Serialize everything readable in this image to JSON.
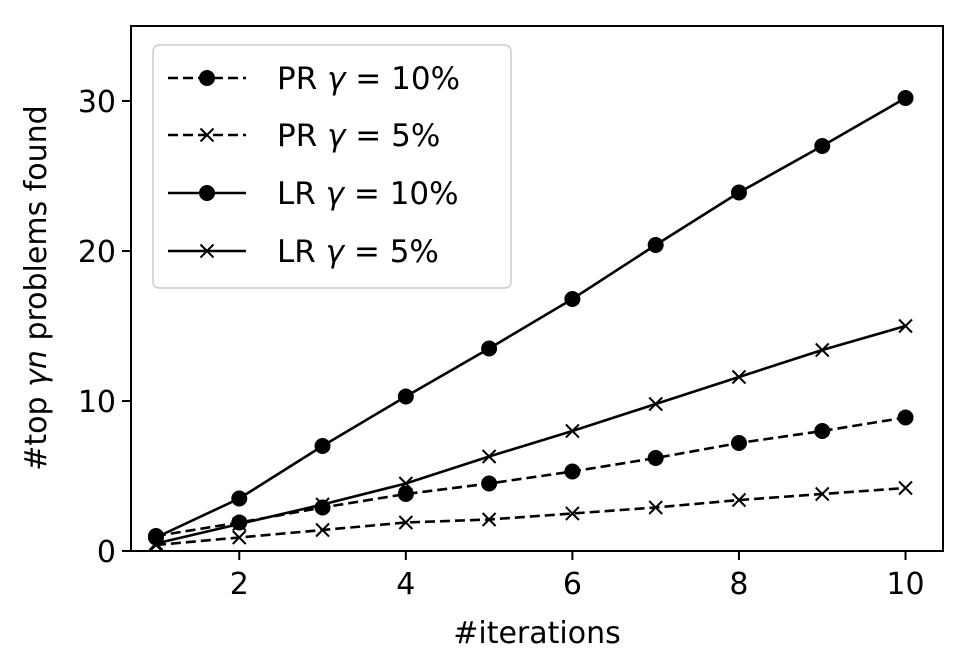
{
  "chart_data": {
    "type": "line",
    "title": "",
    "xlabel": "#iterations",
    "ylabel": {
      "prefix": "#top ",
      "italic": "γn",
      "suffix": " problems found"
    },
    "xlim": [
      0.7,
      10.45
    ],
    "ylim": [
      0,
      35
    ],
    "xticks": [
      2,
      4,
      6,
      8,
      10
    ],
    "yticks": [
      0,
      10,
      20,
      30
    ],
    "grid": false,
    "legend_position": "top-left",
    "x": [
      1,
      2,
      3,
      4,
      5,
      6,
      7,
      8,
      9,
      10
    ],
    "series": [
      {
        "id": "pr10",
        "name": {
          "method": "PR",
          "sym": "γ",
          "rest": " = 10%"
        },
        "linestyle": "dashed",
        "marker": "circle",
        "color": "#000000",
        "values": [
          1.0,
          1.9,
          2.9,
          3.8,
          4.5,
          5.3,
          6.2,
          7.2,
          8.0,
          8.9
        ]
      },
      {
        "id": "pr5",
        "name": {
          "method": "PR",
          "sym": "γ",
          "rest": " = 5%"
        },
        "linestyle": "dashed",
        "marker": "x",
        "color": "#000000",
        "values": [
          0.4,
          0.9,
          1.4,
          1.9,
          2.1,
          2.5,
          2.9,
          3.4,
          3.8,
          4.2
        ]
      },
      {
        "id": "lr10",
        "name": {
          "method": "LR",
          "sym": "γ",
          "rest": " = 10%"
        },
        "linestyle": "solid",
        "marker": "circle",
        "color": "#000000",
        "values": [
          0.9,
          3.5,
          7.0,
          10.3,
          13.5,
          16.8,
          20.4,
          23.9,
          27.0,
          30.2
        ]
      },
      {
        "id": "lr5",
        "name": {
          "method": "LR",
          "sym": "γ",
          "rest": " = 5%"
        },
        "linestyle": "solid",
        "marker": "x",
        "color": "#000000",
        "values": [
          0.5,
          1.8,
          3.1,
          4.5,
          6.3,
          8.0,
          9.8,
          11.6,
          13.4,
          15.0
        ]
      }
    ]
  }
}
